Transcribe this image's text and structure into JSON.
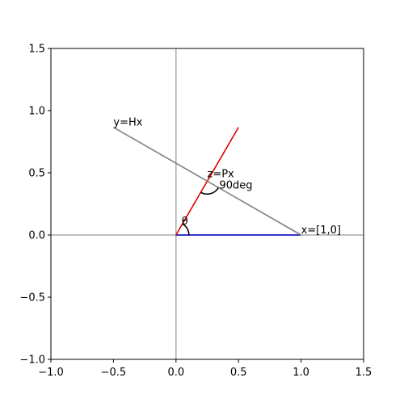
{
  "chart_data": {
    "type": "line",
    "xlim": [
      -1,
      1.5
    ],
    "ylim": [
      -1,
      1.5
    ],
    "xticks": [
      {
        "value": -1,
        "label": "−1.0"
      },
      {
        "value": -0.5,
        "label": "−0.5"
      },
      {
        "value": 0,
        "label": "0.0"
      },
      {
        "value": 0.5,
        "label": "0.5"
      },
      {
        "value": 1,
        "label": "1.0"
      },
      {
        "value": 1.5,
        "label": "1.5"
      }
    ],
    "yticks": [
      {
        "value": -1,
        "label": "−1.0"
      },
      {
        "value": -0.5,
        "label": "−0.5"
      },
      {
        "value": 0,
        "label": "0.0"
      },
      {
        "value": 0.5,
        "label": "0.5"
      },
      {
        "value": 1,
        "label": "1.0"
      },
      {
        "value": 1.5,
        "label": "1.5"
      }
    ],
    "hlines": [
      0
    ],
    "vlines": [
      0
    ],
    "series": [
      {
        "color": "#0000cc",
        "x": [
          0,
          1
        ],
        "values": [
          0,
          0
        ]
      },
      {
        "color": "#dd0000",
        "x": [
          0,
          0.5
        ],
        "values": [
          0,
          0.866
        ]
      },
      {
        "color": "#808080",
        "x": [
          1,
          -0.5
        ],
        "values": [
          0,
          0.866
        ]
      }
    ],
    "annotations": [
      "y=Hx",
      "x=[1,0]",
      "z=Px",
      "90deg",
      "θ"
    ]
  }
}
